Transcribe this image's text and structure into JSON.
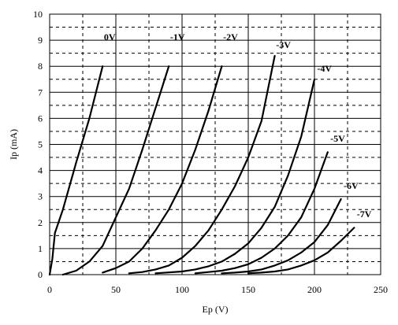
{
  "chart_data": {
    "type": "line",
    "title": "",
    "xlabel": "Ep (V)",
    "ylabel": "Ip (mA)",
    "xlim": [
      0,
      250
    ],
    "ylim": [
      0,
      10
    ],
    "x_ticks": [
      0,
      50,
      100,
      150,
      200,
      250
    ],
    "y_ticks": [
      0,
      1,
      2,
      3,
      4,
      5,
      6,
      7,
      8,
      9,
      10
    ],
    "grid": "solid major, dashed minor",
    "series": [
      {
        "name": "0V",
        "label_at": [
          41,
          9
        ],
        "points": [
          [
            0,
            0
          ],
          [
            2,
            0.6
          ],
          [
            4,
            1.6
          ],
          [
            10,
            2.5
          ],
          [
            20,
            4.3
          ],
          [
            30,
            6.0
          ],
          [
            40,
            8.0
          ]
        ]
      },
      {
        "name": "-1V",
        "label_at": [
          91,
          9
        ],
        "points": [
          [
            10,
            0
          ],
          [
            20,
            0.15
          ],
          [
            30,
            0.5
          ],
          [
            40,
            1.1
          ],
          [
            50,
            2.2
          ],
          [
            60,
            3.3
          ],
          [
            70,
            4.8
          ],
          [
            80,
            6.4
          ],
          [
            90,
            8.0
          ]
        ]
      },
      {
        "name": "-2V",
        "label_at": [
          131,
          9
        ],
        "points": [
          [
            40,
            0.08
          ],
          [
            50,
            0.25
          ],
          [
            60,
            0.5
          ],
          [
            70,
            1.0
          ],
          [
            80,
            1.7
          ],
          [
            90,
            2.5
          ],
          [
            100,
            3.5
          ],
          [
            110,
            4.8
          ],
          [
            120,
            6.3
          ],
          [
            130,
            8.0
          ]
        ]
      },
      {
        "name": "-3V",
        "label_at": [
          171,
          8.7
        ],
        "points": [
          [
            60,
            0.05
          ],
          [
            70,
            0.1
          ],
          [
            80,
            0.2
          ],
          [
            90,
            0.35
          ],
          [
            100,
            0.65
          ],
          [
            110,
            1.1
          ],
          [
            120,
            1.7
          ],
          [
            130,
            2.5
          ],
          [
            140,
            3.4
          ],
          [
            150,
            4.5
          ],
          [
            160,
            5.9
          ],
          [
            170,
            8.4
          ]
        ]
      },
      {
        "name": "-4V",
        "label_at": [
          202,
          7.8
        ],
        "points": [
          [
            80,
            0.05
          ],
          [
            100,
            0.12
          ],
          [
            110,
            0.2
          ],
          [
            120,
            0.32
          ],
          [
            130,
            0.5
          ],
          [
            140,
            0.8
          ],
          [
            150,
            1.2
          ],
          [
            160,
            1.8
          ],
          [
            170,
            2.6
          ],
          [
            180,
            3.8
          ],
          [
            190,
            5.3
          ],
          [
            200,
            7.5
          ]
        ]
      },
      {
        "name": "-5V",
        "label_at": [
          212,
          5.1
        ],
        "points": [
          [
            110,
            0.05
          ],
          [
            120,
            0.1
          ],
          [
            130,
            0.15
          ],
          [
            140,
            0.25
          ],
          [
            150,
            0.4
          ],
          [
            160,
            0.65
          ],
          [
            170,
            1.0
          ],
          [
            180,
            1.5
          ],
          [
            190,
            2.2
          ],
          [
            200,
            3.3
          ],
          [
            210,
            4.7
          ]
        ]
      },
      {
        "name": "-6V",
        "label_at": [
          222,
          3.3
        ],
        "points": [
          [
            130,
            0.05
          ],
          [
            140,
            0.08
          ],
          [
            150,
            0.12
          ],
          [
            160,
            0.2
          ],
          [
            170,
            0.35
          ],
          [
            180,
            0.55
          ],
          [
            190,
            0.85
          ],
          [
            200,
            1.25
          ],
          [
            210,
            1.9
          ],
          [
            220,
            2.9
          ]
        ]
      },
      {
        "name": "-7V",
        "label_at": [
          232,
          2.2
        ],
        "points": [
          [
            150,
            0.05
          ],
          [
            160,
            0.08
          ],
          [
            170,
            0.12
          ],
          [
            180,
            0.2
          ],
          [
            190,
            0.35
          ],
          [
            200,
            0.55
          ],
          [
            210,
            0.85
          ],
          [
            220,
            1.3
          ],
          [
            230,
            1.8
          ]
        ]
      }
    ]
  },
  "colors": {
    "line": "#000000",
    "grid": "#000000",
    "background": "#ffffff"
  }
}
